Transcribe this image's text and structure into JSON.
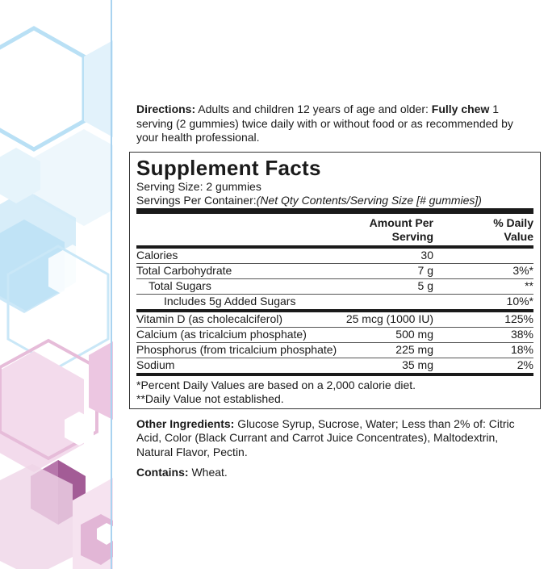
{
  "directions": {
    "label": "Directions:",
    "text_1": " Adults and children 12 years of age and older: ",
    "emphasis": "Fully chew",
    "text_2": " 1 serving (2 gummies) twice daily with or without food or as recommended by your health professional."
  },
  "facts": {
    "title": "Supplement Facts",
    "serving_size": "Serving Size: 2 gummies",
    "servings_prefix": "Servings Per Container:",
    "servings_value": "(Net Qty Contents/Serving Size [# gummies])",
    "header_amount_line1": "Amount Per",
    "header_amount_line2": "Serving",
    "header_dv_line1": "% Daily",
    "header_dv_line2": "Value",
    "rows": [
      {
        "name": "Calories",
        "amount": "30",
        "dv": ""
      },
      {
        "name": "Total Carbohydrate",
        "amount": "7 g",
        "dv": "3%*"
      },
      {
        "name": "Total Sugars",
        "amount": "5 g",
        "dv": "**"
      },
      {
        "name": "Includes 5g Added Sugars",
        "amount": "",
        "dv": "10%*"
      },
      {
        "name": "Vitamin D (as cholecalciferol)",
        "amount": "25 mcg (1000 IU)",
        "dv": "125%"
      },
      {
        "name": "Calcium (as tricalcium phosphate)",
        "amount": "500 mg",
        "dv": "38%"
      },
      {
        "name": "Phosphorus (from tricalcium phosphate)",
        "amount": "225 mg",
        "dv": "18%"
      },
      {
        "name": "Sodium",
        "amount": "35 mg",
        "dv": "2%"
      }
    ],
    "footnote_1": "*Percent Daily Values are based on a 2,000 calorie diet.",
    "footnote_2": "**Daily Value not established."
  },
  "other_ingredients": {
    "label": "Other Ingredients:",
    "text": " Glucose Syrup, Sucrose, Water; Less than 2% of: Citric Acid, Color (Black Currant and Carrot Juice Concentrates), Maltodextrin, Natural Flavor, Pectin."
  },
  "contains": {
    "label": "Contains:",
    "text": " Wheat."
  },
  "colors": {
    "divider": "#a9d3f0",
    "hex_blue": "#a9d7f2",
    "hex_pink": "#dca7cf",
    "hex_purple": "#b46aa8"
  },
  "icons": [
    "hexagon-pattern-decoration"
  ]
}
